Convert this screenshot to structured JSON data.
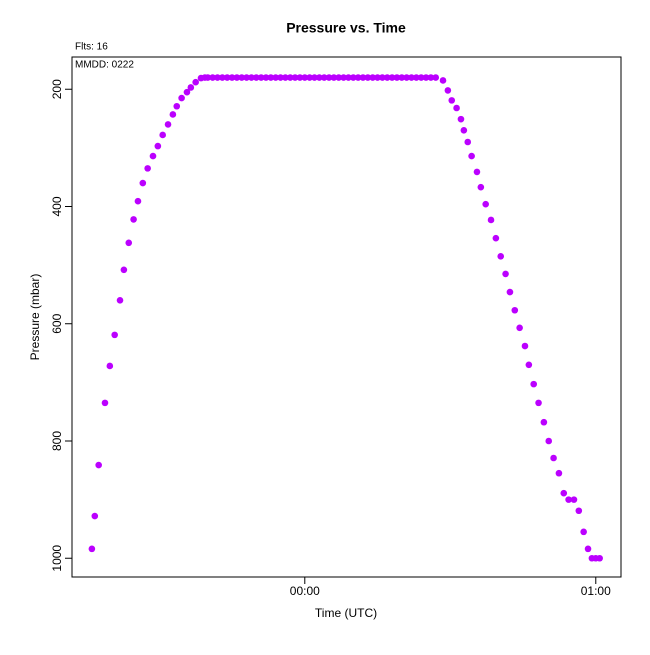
{
  "chart_data": {
    "type": "scatter",
    "title": "Pressure  vs. Time",
    "annotations": [
      "Flts: 16",
      "MMDD: 0222"
    ],
    "x_label": "Time (UTC)",
    "y_label": "Pressure (mbar)",
    "xlim": [
      -48,
      65.2
    ],
    "xticks": [
      {
        "value": 0,
        "label": "00:00"
      },
      {
        "value": 60,
        "label": "01:00"
      }
    ],
    "ylim": [
      1032,
      145
    ],
    "yticks": [
      200,
      400,
      600,
      800,
      1000
    ],
    "series": [
      {
        "color": "#bb00ff",
        "x": [
          -43.9,
          -43.3,
          -42.5,
          -41.2,
          -40.2,
          -39.2,
          -38.1,
          -37.3,
          -36.3,
          -35.3,
          -34.4,
          -33.4,
          -32.4,
          -31.3,
          -30.3,
          -29.3,
          -28.2,
          -27.2,
          -26.4,
          -25.4,
          -24.3,
          -23.5,
          -22.5,
          -21.4,
          -20.6,
          -20,
          -19,
          -18,
          -17,
          -16,
          -15,
          -14,
          -13,
          -12,
          -11,
          -10,
          -9,
          -8,
          -7,
          -6,
          -5,
          -4,
          -3,
          -2,
          -1,
          0,
          1,
          2,
          3,
          4,
          5,
          6,
          7,
          8,
          9,
          10,
          11,
          12,
          13,
          14,
          15,
          16,
          17,
          18,
          19,
          20,
          21,
          22,
          23,
          24,
          25,
          26,
          27,
          28.5,
          29.5,
          30.3,
          31.3,
          32.2,
          32.8,
          33.6,
          34.4,
          35.5,
          36.3,
          37.3,
          38.4,
          39.4,
          40.4,
          41.4,
          42.3,
          43.3,
          44.3,
          45.4,
          46.2,
          47.2,
          48.2,
          49.3,
          50.3,
          51.3,
          52.4,
          53.4,
          54.4,
          55.5,
          56.5,
          57.5,
          58.4,
          59.2,
          60.0,
          60.8
        ],
        "values": [
          984,
          928,
          841,
          735,
          672,
          619,
          560,
          508,
          462,
          422,
          391,
          360,
          335,
          314,
          297,
          278,
          260,
          243,
          229,
          215,
          205,
          197,
          188,
          181,
          180,
          180,
          180,
          180,
          180,
          180,
          180,
          180,
          180,
          180,
          180,
          180,
          180,
          180,
          180,
          180,
          180,
          180,
          180,
          180,
          180,
          180,
          180,
          180,
          180,
          180,
          180,
          180,
          180,
          180,
          180,
          180,
          180,
          180,
          180,
          180,
          180,
          180,
          180,
          180,
          180,
          180,
          180,
          180,
          180,
          180,
          180,
          180,
          180,
          185,
          202,
          219,
          232,
          251,
          270,
          290,
          314,
          341,
          367,
          396,
          423,
          454,
          485,
          515,
          546,
          577,
          607,
          638,
          670,
          703,
          735,
          768,
          800,
          829,
          855,
          889,
          900,
          900,
          919,
          955,
          984,
          1000,
          1000,
          1000
        ]
      }
    ]
  }
}
